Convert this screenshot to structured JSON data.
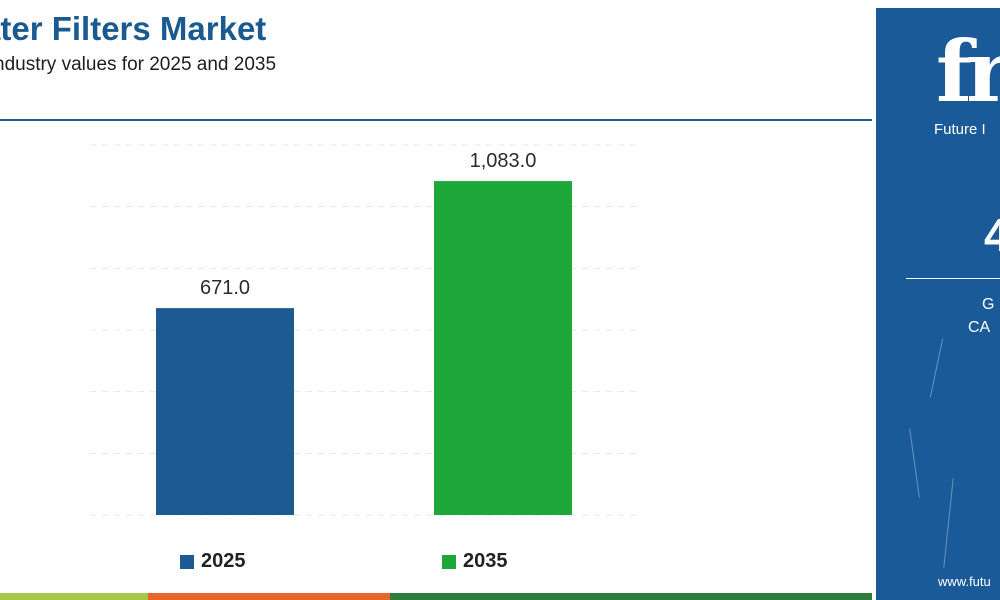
{
  "header": {
    "title": "ater Filters Market",
    "subtitle": "ndustry values for 2025 and 2035"
  },
  "chart_data": {
    "type": "bar",
    "categories": [
      "2025",
      "2035"
    ],
    "values": [
      671.0,
      1083.0
    ],
    "value_labels": [
      "671.0",
      "1,083.0"
    ],
    "colors": [
      "#1d5a92",
      "#1ea839"
    ],
    "ylim": [
      0,
      1200
    ],
    "grid": true,
    "legend_position": "bottom"
  },
  "legend": [
    {
      "label": "2025",
      "color": "#1d5a92"
    },
    {
      "label": "2035",
      "color": "#1ea839"
    }
  ],
  "side_panel": {
    "logo_text": "fr",
    "brand": "Future I",
    "big_value": "4",
    "metric_line1": "G",
    "metric_line2": "CA",
    "url": "www.futu"
  }
}
